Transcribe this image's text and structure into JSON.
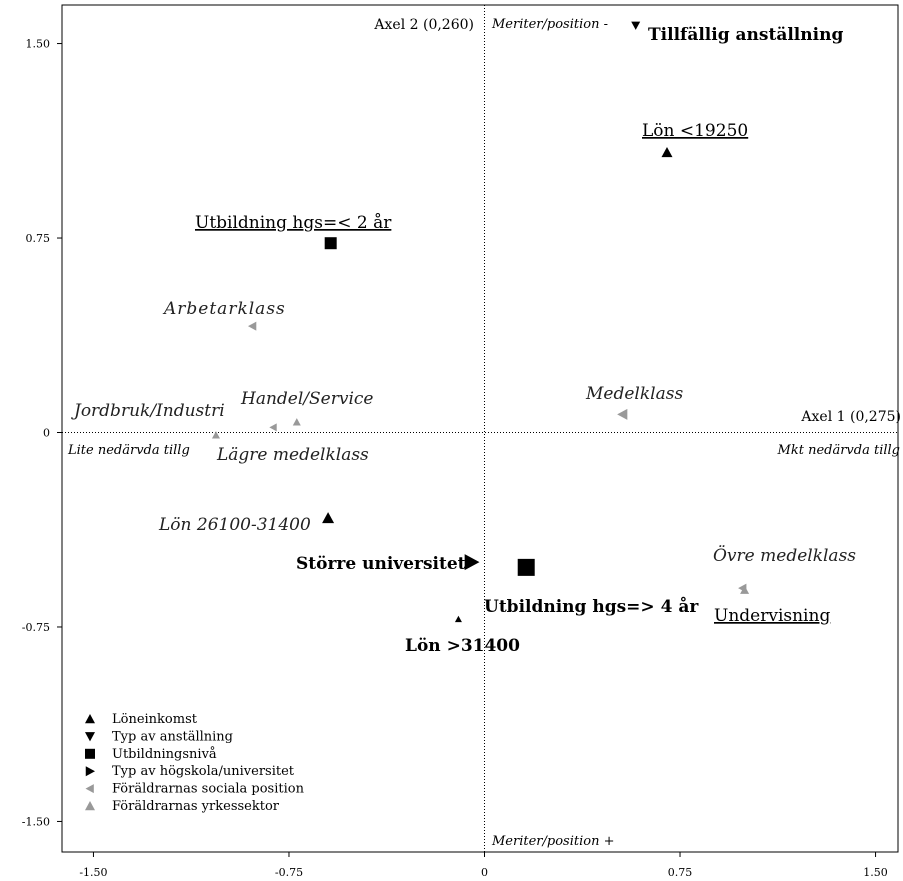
{
  "chart_data": {
    "type": "scatter",
    "x": {
      "ticks": [
        -1.5,
        -0.75,
        0,
        0.75,
        1.5
      ],
      "tick_labels": [
        "-1.50",
        "-0.75",
        "0",
        "0.75",
        "1.50"
      ]
    },
    "y": {
      "ticks": [
        1.5,
        0.75,
        0,
        -0.75,
        -1.5
      ],
      "tick_labels": [
        "1.50",
        "0.75",
        "0",
        "-0.75",
        "-1.50"
      ]
    },
    "xlim": [
      -1.62,
      1.62
    ],
    "ylim": [
      -1.62,
      1.65
    ],
    "axis1_label": "Axel 1 (0,275)",
    "axis2_label": "Axel 2 (0,260)",
    "pole_labels": {
      "top": "Meriter/position -",
      "bottom": "Meriter/position +",
      "left": "Lite nedärvda tillg",
      "right": "Mkt nedärvda tillg"
    },
    "legend": [
      {
        "marker": "triangle-up",
        "color": "#000000",
        "label": "Löneinkomst"
      },
      {
        "marker": "triangle-down",
        "color": "#000000",
        "label": "Typ av anställning"
      },
      {
        "marker": "square",
        "color": "#000000",
        "label": "Utbildningsnivå"
      },
      {
        "marker": "triangle-right",
        "color": "#000000",
        "label": "Typ av högskola/universitet"
      },
      {
        "marker": "triangle-left",
        "color": "#999999",
        "label": "Föräldrarnas sociala position"
      },
      {
        "marker": "triangle-up",
        "color": "#999999",
        "label": "Föräldrarnas yrkessektor"
      }
    ],
    "points": [
      {
        "label": "Tillfällig anställning",
        "x": 0.58,
        "y": 1.57,
        "marker": "triangle-down",
        "color": "#000000",
        "size": 9,
        "style": "bold"
      },
      {
        "label": "Lön <19250",
        "x": 0.7,
        "y": 1.08,
        "marker": "triangle-up",
        "color": "#000000",
        "size": 11,
        "style": "underline"
      },
      {
        "label": "Utbildning hgs=< 2 år",
        "x": -0.59,
        "y": 0.73,
        "marker": "square",
        "color": "#000000",
        "size": 12,
        "style": "underline"
      },
      {
        "label": "Arbetarklass",
        "x": -0.89,
        "y": 0.41,
        "marker": "triangle-left",
        "color": "#999999",
        "size": 9,
        "style": "italic"
      },
      {
        "label": "Medelklass",
        "x": 0.53,
        "y": 0.07,
        "marker": "triangle-left",
        "color": "#999999",
        "size": 11,
        "style": "italic"
      },
      {
        "label": "Jordbruk/Industri",
        "x": -1.03,
        "y": -0.01,
        "marker": "triangle-up",
        "color": "#999999",
        "size": 8,
        "style": "italic"
      },
      {
        "label": "Handel/Service",
        "x": -0.72,
        "y": 0.04,
        "marker": "triangle-up",
        "color": "#999999",
        "size": 8,
        "style": "italic"
      },
      {
        "label": "Lägre medelklass",
        "x": -0.81,
        "y": 0.02,
        "marker": "triangle-left",
        "color": "#999999",
        "size": 8,
        "style": "italic"
      },
      {
        "label": "Lön 26100-31400",
        "x": -0.6,
        "y": -0.33,
        "marker": "triangle-up",
        "color": "#000000",
        "size": 12,
        "style": "italic"
      },
      {
        "label": "Större universitet",
        "x": -0.05,
        "y": -0.5,
        "marker": "triangle-right",
        "color": "#000000",
        "size": 16,
        "style": "bold"
      },
      {
        "label": "Utbildning hgs=> 4 år",
        "x": 0.16,
        "y": -0.52,
        "marker": "square",
        "color": "#000000",
        "size": 17,
        "style": "bold"
      },
      {
        "label": "Lön >31400",
        "x": -0.1,
        "y": -0.72,
        "marker": "triangle-up",
        "color": "#000000",
        "size": 7,
        "style": "bold"
      },
      {
        "label": "Övre medelklass",
        "x": 0.99,
        "y": -0.6,
        "marker": "triangle-left",
        "color": "#999999",
        "size": 9,
        "style": "italic"
      },
      {
        "label": "Undervisning",
        "x": 0.99,
        "y": -0.6,
        "marker": "triangle-up",
        "color": "#999999",
        "size": 9,
        "style": "underline"
      }
    ]
  }
}
